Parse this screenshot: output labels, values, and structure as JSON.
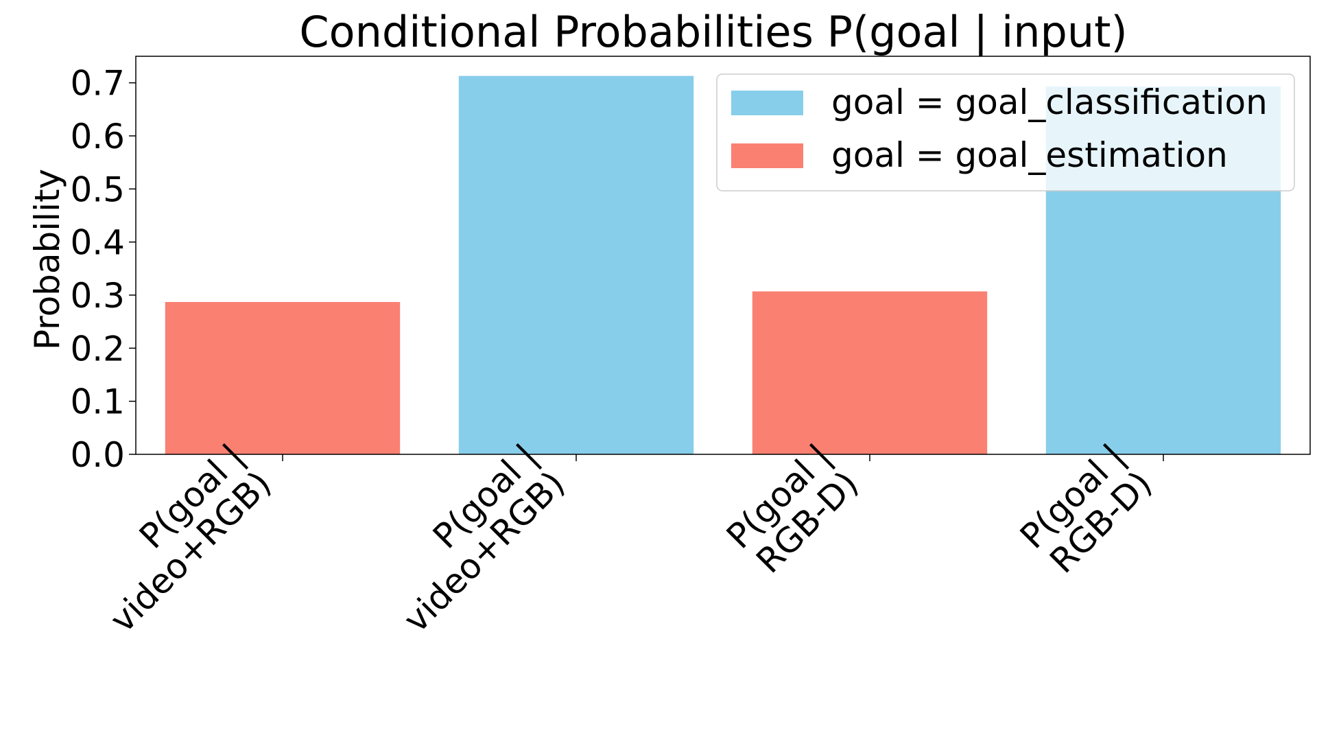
{
  "chart_data": {
    "type": "bar",
    "title": "Conditional Probabilities P(goal | input)",
    "xlabel": "",
    "ylabel": "Probability",
    "ylim": [
      0,
      0.75
    ],
    "yticks": [
      "0.0",
      "0.1",
      "0.2",
      "0.3",
      "0.4",
      "0.5",
      "0.6",
      "0.7"
    ],
    "ytick_values": [
      0.0,
      0.1,
      0.2,
      0.3,
      0.4,
      0.5,
      0.6,
      0.7
    ],
    "categories": [
      [
        "P(goal |",
        "video+RGB)"
      ],
      [
        "P(goal |",
        "video+RGB)"
      ],
      [
        "P(goal |",
        "RGB-D)"
      ],
      [
        "P(goal |",
        "RGB-D)"
      ]
    ],
    "bars": [
      {
        "category_index": 0,
        "series": "goal = goal_estimation",
        "value": 0.287
      },
      {
        "category_index": 1,
        "series": "goal = goal_classification",
        "value": 0.713
      },
      {
        "category_index": 2,
        "series": "goal = goal_estimation",
        "value": 0.307
      },
      {
        "category_index": 3,
        "series": "goal = goal_classification",
        "value": 0.693
      }
    ],
    "series": [
      {
        "name": "goal = goal_classification",
        "color": "#87CEEB"
      },
      {
        "name": "goal = goal_estimation",
        "color": "#FA8072"
      }
    ],
    "legend_position": "top-right",
    "grid": false
  }
}
